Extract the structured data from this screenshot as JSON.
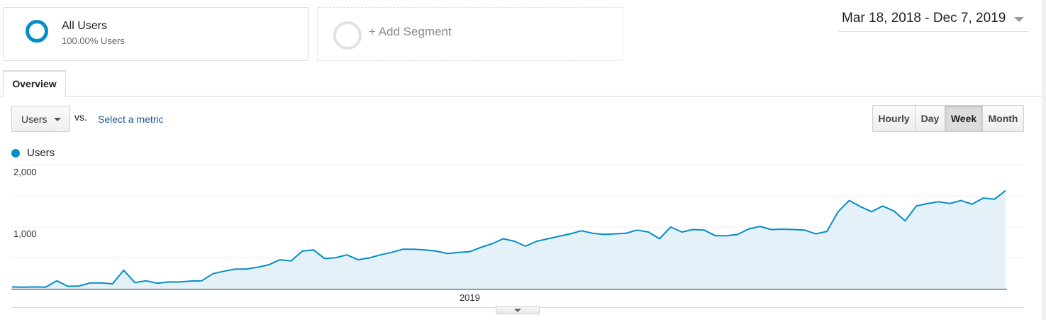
{
  "segments": {
    "all_users": {
      "title": "All Users",
      "subtitle": "100.00% Users",
      "color": "#058dc7"
    },
    "add_segment": {
      "label": "+ Add Segment"
    }
  },
  "date_range": {
    "label": "Mar 18, 2018 - Dec 7, 2019"
  },
  "tabs": [
    {
      "label": "Overview",
      "active": true
    }
  ],
  "metric_select": {
    "value": "Users"
  },
  "vs_label": "vs.",
  "select_metric_link": "Select a metric",
  "period_buttons": [
    {
      "label": "Hourly",
      "active": false
    },
    {
      "label": "Day",
      "active": false
    },
    {
      "label": "Week",
      "active": true
    },
    {
      "label": "Month",
      "active": false
    }
  ],
  "legend": {
    "label": "Users",
    "color": "#058dc7"
  },
  "chart_data": {
    "type": "area",
    "series": [
      {
        "name": "Users",
        "color": "#058dc7",
        "fill": "#e5f1f8",
        "values": [
          30,
          25,
          30,
          25,
          130,
          40,
          45,
          95,
          95,
          80,
          300,
          100,
          130,
          90,
          110,
          110,
          125,
          130,
          245,
          285,
          320,
          320,
          350,
          390,
          470,
          450,
          610,
          630,
          490,
          505,
          550,
          470,
          500,
          550,
          590,
          640,
          640,
          630,
          610,
          570,
          590,
          600,
          670,
          730,
          810,
          770,
          690,
          770,
          810,
          850,
          890,
          940,
          900,
          880,
          890,
          900,
          950,
          920,
          810,
          1000,
          920,
          960,
          950,
          860,
          860,
          880,
          970,
          1010,
          960,
          965,
          960,
          950,
          890,
          930,
          1250,
          1430,
          1330,
          1250,
          1340,
          1260,
          1100,
          1340,
          1380,
          1410,
          1380,
          1430,
          1370,
          1470,
          1450,
          1590
        ]
      }
    ],
    "x_labels": [
      "2019"
    ],
    "ylim": [
      0,
      2000
    ],
    "yticks": [
      1000,
      2000
    ],
    "ytick_labels": [
      "1,000",
      "2,000"
    ],
    "grid": true
  }
}
